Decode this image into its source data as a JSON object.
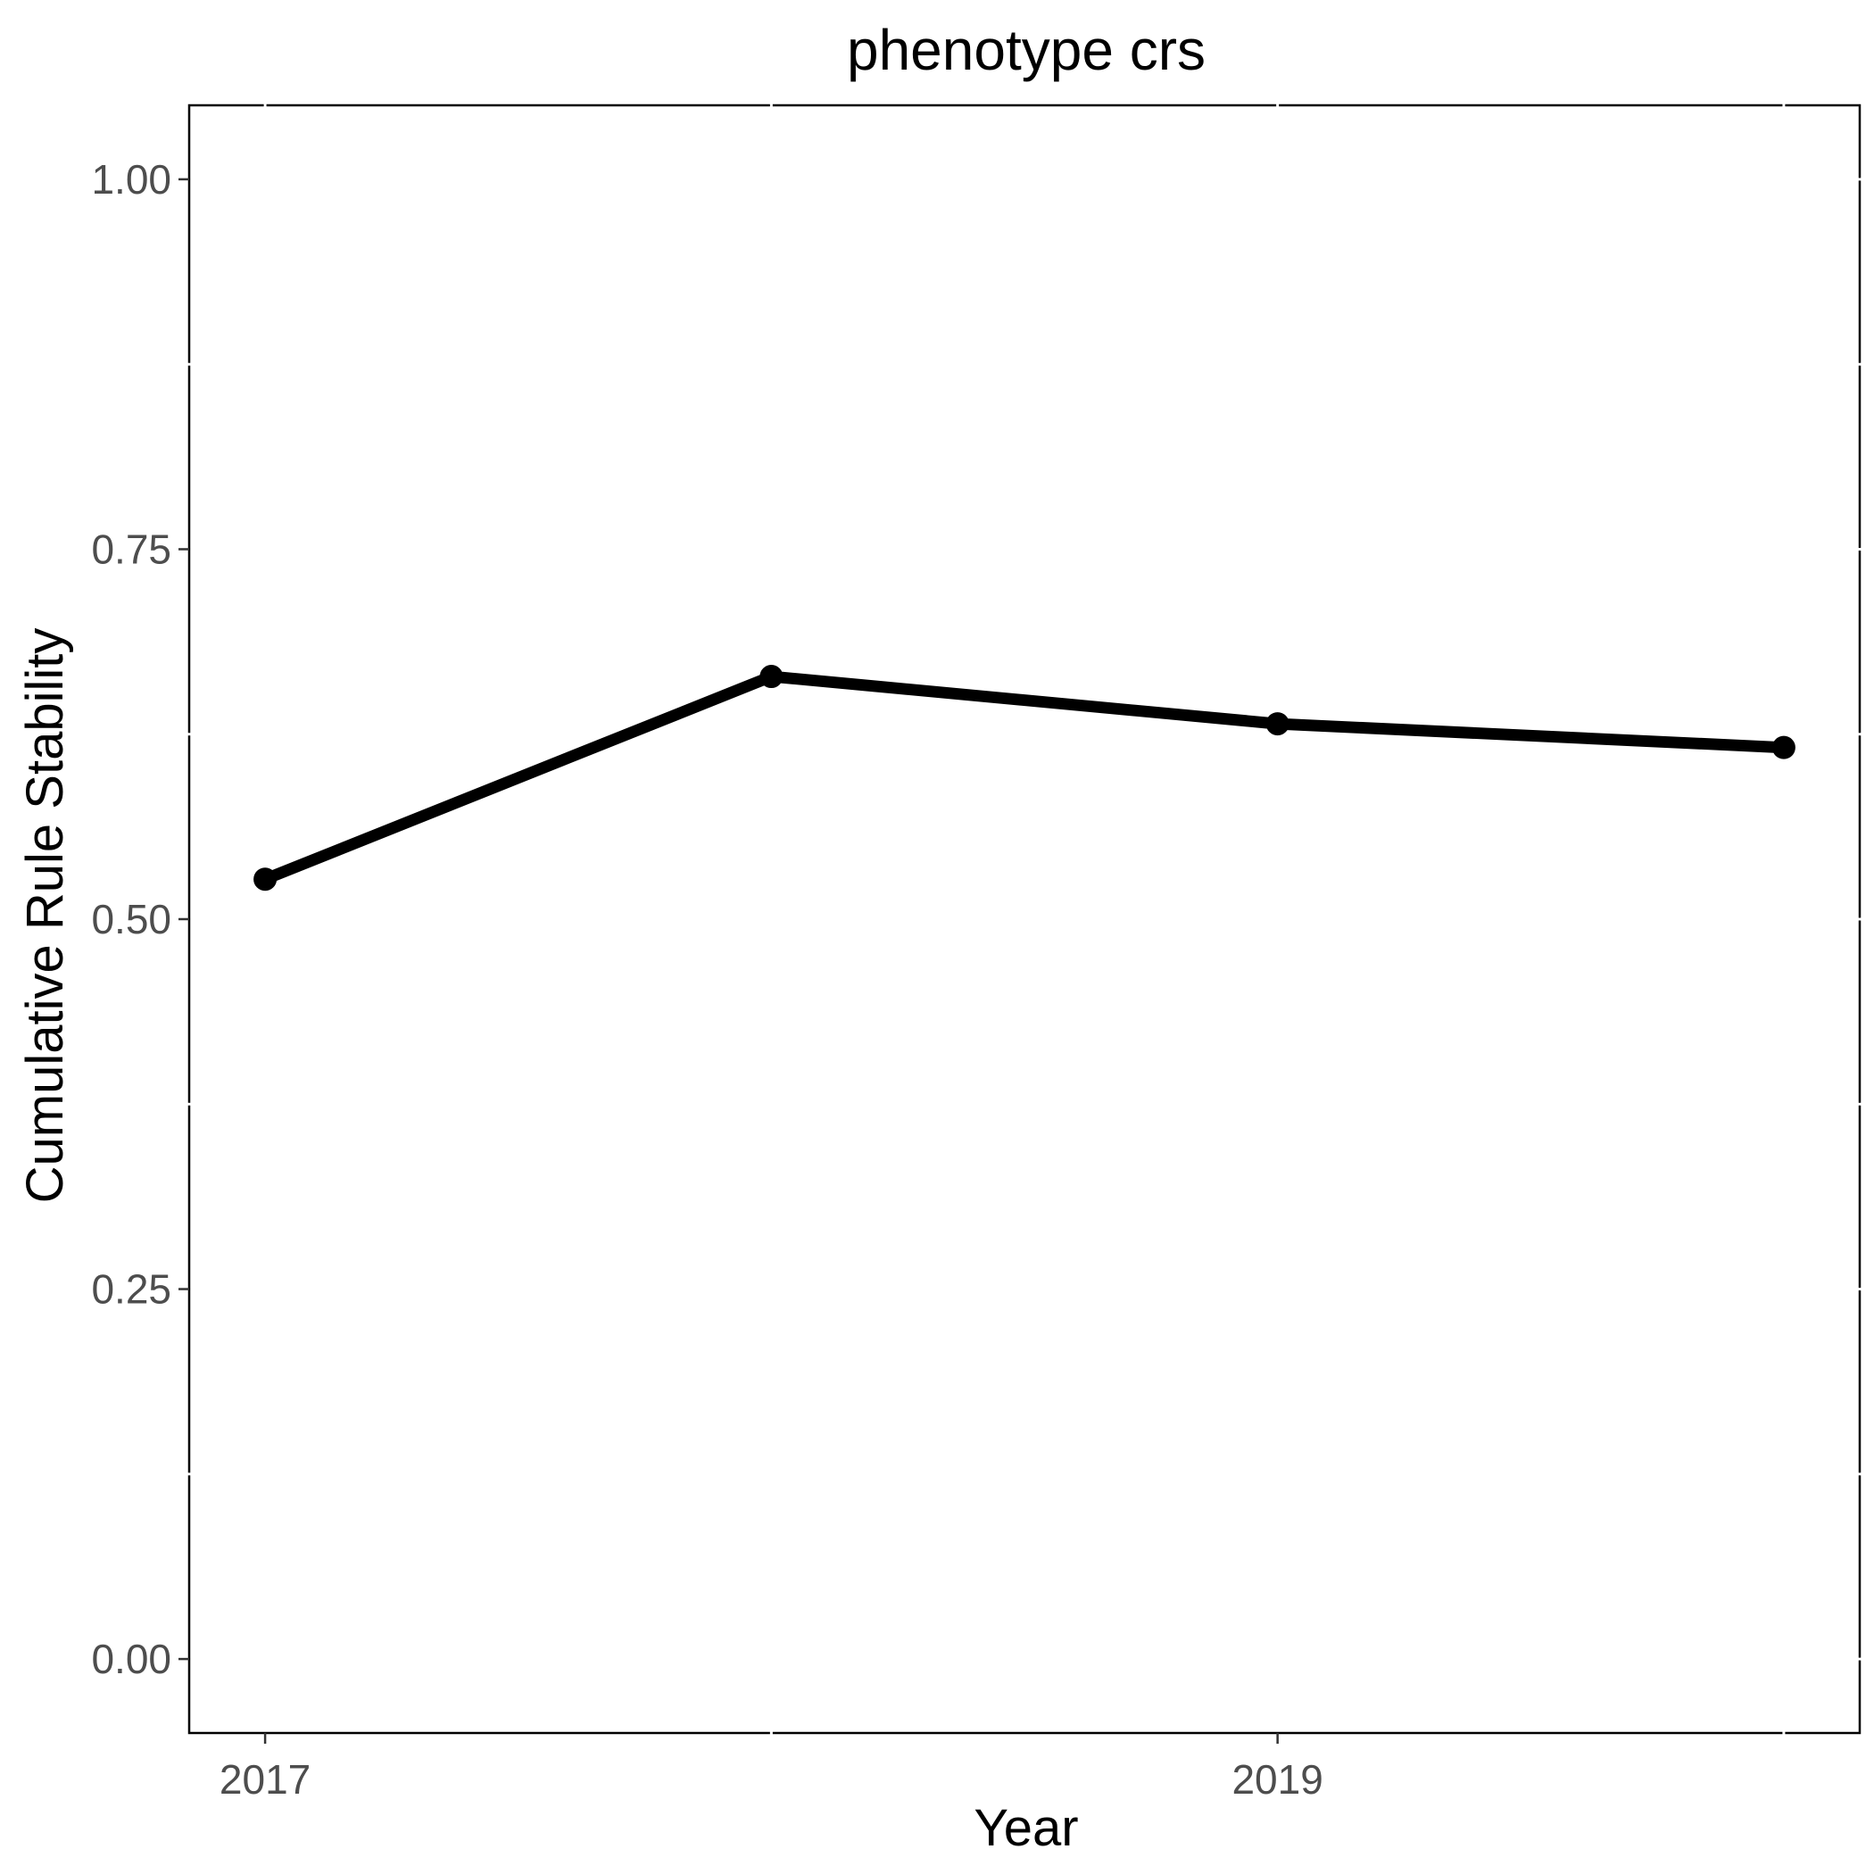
{
  "chart_data": {
    "type": "line",
    "title": "phenotype crs",
    "xlabel": "Year",
    "ylabel": "Cumulative Rule Stability",
    "x": [
      2017,
      2018,
      2019,
      2020
    ],
    "series": [
      {
        "values": [
          0.527,
          0.664,
          0.632,
          0.616
        ]
      }
    ],
    "xlim": [
      2016.85,
      2020.15
    ],
    "ylim": [
      -0.05,
      1.05
    ],
    "x_ticks": [
      2017,
      2019
    ],
    "x_tick_labels": [
      "2017",
      "2019"
    ],
    "x_minor_ticks": [
      2018,
      2020
    ],
    "y_ticks": [
      0,
      0.25,
      0.5,
      0.75,
      1
    ],
    "y_tick_labels": [
      "0.00",
      "0.25",
      "0.50",
      "0.75",
      "1.00"
    ],
    "y_minor_ticks": [
      0.125,
      0.375,
      0.625,
      0.875
    ],
    "grid": false,
    "legend": "none",
    "colors": {
      "line": "#000000",
      "axis_text": "#4d4d4d",
      "panel_border": "#000000"
    }
  }
}
